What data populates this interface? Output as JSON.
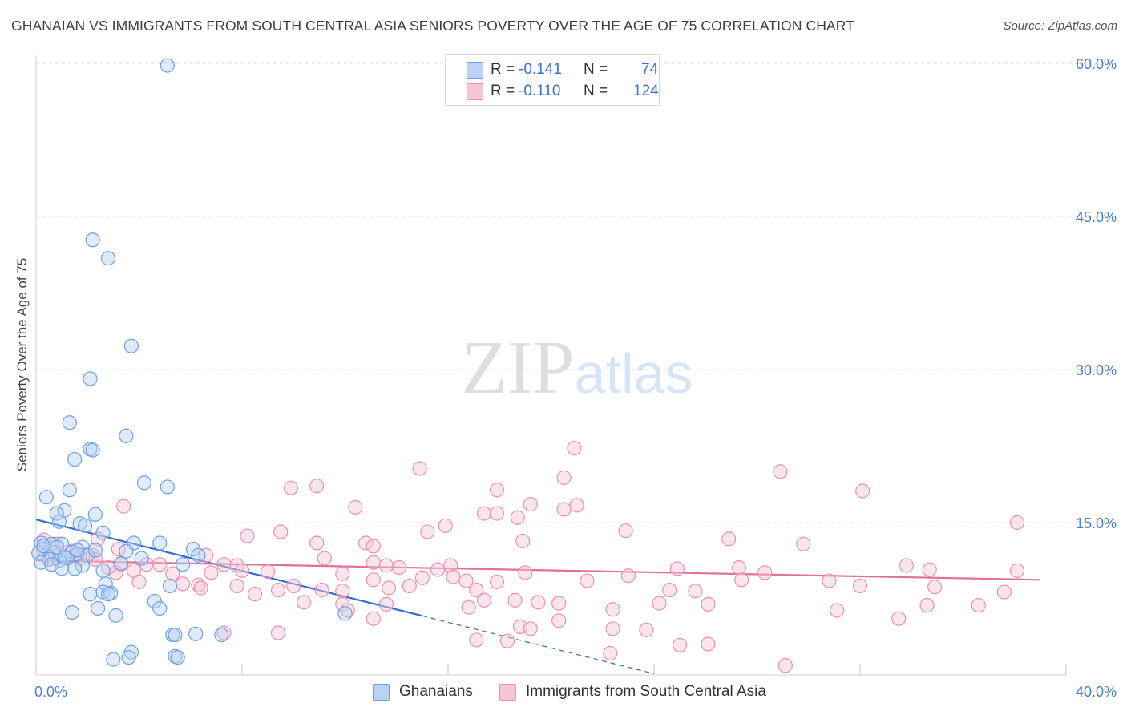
{
  "title": "GHANAIAN VS IMMIGRANTS FROM SOUTH CENTRAL ASIA SENIORS POVERTY OVER THE AGE OF 75 CORRELATION CHART",
  "source": "Source: ZipAtlas.com",
  "watermark": "ZIPatlas",
  "colors": {
    "blue_fill": "#b9d2f5",
    "blue_stroke": "#6d9fe6",
    "blue_line": "#2f6fd0",
    "pink_fill": "#f6c6d6",
    "pink_stroke": "#ec8fb0",
    "pink_line": "#e0709a",
    "axis_text": "#4a7fd6",
    "grid": "#dcdcdc"
  },
  "legend_top": {
    "series1": {
      "r_label": "R =",
      "r_value": "-0.141",
      "n_label": "N =",
      "n_value": "74"
    },
    "series2": {
      "r_label": "R =",
      "r_value": "-0.110",
      "n_label": "N =",
      "n_value": "124"
    }
  },
  "legend_bottom": {
    "series1": "Ghanaians",
    "series2": "Immigrants from South Central Asia"
  },
  "chart_data": {
    "type": "scatter",
    "title": "GHANAIAN VS IMMIGRANTS FROM SOUTH CENTRAL ASIA SENIORS POVERTY OVER THE AGE OF 75 CORRELATION CHART",
    "xlabel": "",
    "ylabel": "Seniors Poverty Over the Age of 75",
    "xlim": [
      0,
      40
    ],
    "ylim": [
      0,
      60
    ],
    "x_tick_labels": [
      "0.0%",
      "40.0%"
    ],
    "y_ticks": [
      15,
      30,
      45,
      60
    ],
    "y_tick_labels": [
      "15.0%",
      "30.0%",
      "45.0%",
      "60.0%"
    ],
    "grid": true,
    "legend_position": "top-center",
    "series": [
      {
        "name": "Ghanaians",
        "r": -0.141,
        "n": 74,
        "trend": {
          "x_start": 0,
          "y_start": 15.3,
          "x_solid_end": 15.0,
          "x_end": 24.0,
          "y_end": 0.2
        },
        "points": [
          [
            5.1,
            59.8
          ],
          [
            2.2,
            42.7
          ],
          [
            2.8,
            40.9
          ],
          [
            3.7,
            32.3
          ],
          [
            2.1,
            29.1
          ],
          [
            1.3,
            24.8
          ],
          [
            3.5,
            23.5
          ],
          [
            2.1,
            22.2
          ],
          [
            2.2,
            22.1
          ],
          [
            1.5,
            21.2
          ],
          [
            4.2,
            18.9
          ],
          [
            5.1,
            18.5
          ],
          [
            1.3,
            18.2
          ],
          [
            0.4,
            17.5
          ],
          [
            1.1,
            16.2
          ],
          [
            0.8,
            15.9
          ],
          [
            2.3,
            15.8
          ],
          [
            1.7,
            14.9
          ],
          [
            0.9,
            15.1
          ],
          [
            1.9,
            14.7
          ],
          [
            2.6,
            14.0
          ],
          [
            3.8,
            13.0
          ],
          [
            4.8,
            13.0
          ],
          [
            0.2,
            13.0
          ],
          [
            0.6,
            12.9
          ],
          [
            1.0,
            12.9
          ],
          [
            1.8,
            12.6
          ],
          [
            0.3,
            12.4
          ],
          [
            1.4,
            12.1
          ],
          [
            6.1,
            12.4
          ],
          [
            3.5,
            12.2
          ],
          [
            0.1,
            12.0
          ],
          [
            0.7,
            12.1
          ],
          [
            1.6,
            11.9
          ],
          [
            2.0,
            11.8
          ],
          [
            6.3,
            11.8
          ],
          [
            0.5,
            11.4
          ],
          [
            1.2,
            11.5
          ],
          [
            4.1,
            11.5
          ],
          [
            0.9,
            11.3
          ],
          [
            0.2,
            11.1
          ],
          [
            3.3,
            11.0
          ],
          [
            1.8,
            10.8
          ],
          [
            0.6,
            10.9
          ],
          [
            5.7,
            10.9
          ],
          [
            1.5,
            10.5
          ],
          [
            1.0,
            10.5
          ],
          [
            2.6,
            10.3
          ],
          [
            2.7,
            9.0
          ],
          [
            5.2,
            8.8
          ],
          [
            2.6,
            8.2
          ],
          [
            2.9,
            8.1
          ],
          [
            2.1,
            8.0
          ],
          [
            2.8,
            8.0
          ],
          [
            4.6,
            7.3
          ],
          [
            4.8,
            6.6
          ],
          [
            2.4,
            6.6
          ],
          [
            1.4,
            6.2
          ],
          [
            3.1,
            5.9
          ],
          [
            12.0,
            6.1
          ],
          [
            5.3,
            4.0
          ],
          [
            5.4,
            4.0
          ],
          [
            6.2,
            4.1
          ],
          [
            7.2,
            4.0
          ],
          [
            3.7,
            2.3
          ],
          [
            3.0,
            1.6
          ],
          [
            3.6,
            1.8
          ],
          [
            5.4,
            1.9
          ],
          [
            5.5,
            1.8
          ],
          [
            0.3,
            12.7
          ],
          [
            0.8,
            12.6
          ],
          [
            2.3,
            12.3
          ],
          [
            1.1,
            11.6
          ],
          [
            1.6,
            12.3
          ]
        ]
      },
      {
        "name": "Immigrants from South Central Asia",
        "r": -0.11,
        "n": 124,
        "trend": {
          "x_start": 0,
          "y_start": 11.3,
          "x_end": 39.0,
          "y_end": 9.4
        },
        "points": [
          [
            20.9,
            22.3
          ],
          [
            14.9,
            20.3
          ],
          [
            28.9,
            20.0
          ],
          [
            20.5,
            19.4
          ],
          [
            10.9,
            18.6
          ],
          [
            9.9,
            18.4
          ],
          [
            17.9,
            18.2
          ],
          [
            32.1,
            18.1
          ],
          [
            3.4,
            16.6
          ],
          [
            12.4,
            16.5
          ],
          [
            19.2,
            16.8
          ],
          [
            21.0,
            16.7
          ],
          [
            17.4,
            15.9
          ],
          [
            17.9,
            15.9
          ],
          [
            20.5,
            16.3
          ],
          [
            18.7,
            15.5
          ],
          [
            15.9,
            14.7
          ],
          [
            15.2,
            14.1
          ],
          [
            9.5,
            14.1
          ],
          [
            22.9,
            14.2
          ],
          [
            38.1,
            15.0
          ],
          [
            8.2,
            13.7
          ],
          [
            26.9,
            13.4
          ],
          [
            18.9,
            13.2
          ],
          [
            10.9,
            13.0
          ],
          [
            12.8,
            13.0
          ],
          [
            13.1,
            12.7
          ],
          [
            3.2,
            12.4
          ],
          [
            2.4,
            13.4
          ],
          [
            0.3,
            13.3
          ],
          [
            29.8,
            12.9
          ],
          [
            0.1,
            12.0
          ],
          [
            1.2,
            12.1
          ],
          [
            1.7,
            11.5
          ],
          [
            2.2,
            11.8
          ],
          [
            6.6,
            11.8
          ],
          [
            11.2,
            11.5
          ],
          [
            13.1,
            11.1
          ],
          [
            7.3,
            10.9
          ],
          [
            7.8,
            10.8
          ],
          [
            3.3,
            10.9
          ],
          [
            4.3,
            10.9
          ],
          [
            14.1,
            10.6
          ],
          [
            13.6,
            10.8
          ],
          [
            16.1,
            10.8
          ],
          [
            24.9,
            10.5
          ],
          [
            27.3,
            10.6
          ],
          [
            33.8,
            10.8
          ],
          [
            38.1,
            10.3
          ],
          [
            34.7,
            10.4
          ],
          [
            8.0,
            10.3
          ],
          [
            6.8,
            10.1
          ],
          [
            9.0,
            10.2
          ],
          [
            3.8,
            10.3
          ],
          [
            5.3,
            10.0
          ],
          [
            11.9,
            10.0
          ],
          [
            15.0,
            9.6
          ],
          [
            16.2,
            9.7
          ],
          [
            21.4,
            9.3
          ],
          [
            23.0,
            9.8
          ],
          [
            16.7,
            9.3
          ],
          [
            13.1,
            9.4
          ],
          [
            17.9,
            9.2
          ],
          [
            4.0,
            9.2
          ],
          [
            5.7,
            9.0
          ],
          [
            6.3,
            8.9
          ],
          [
            7.8,
            8.8
          ],
          [
            10.0,
            8.8
          ],
          [
            13.7,
            8.6
          ],
          [
            14.5,
            8.8
          ],
          [
            27.4,
            9.4
          ],
          [
            30.8,
            9.3
          ],
          [
            32.0,
            8.8
          ],
          [
            34.9,
            8.7
          ],
          [
            37.6,
            8.2
          ],
          [
            9.4,
            8.4
          ],
          [
            11.1,
            8.4
          ],
          [
            11.9,
            8.3
          ],
          [
            17.1,
            8.4
          ],
          [
            24.6,
            8.4
          ],
          [
            25.6,
            8.3
          ],
          [
            6.4,
            8.6
          ],
          [
            8.5,
            8.0
          ],
          [
            10.4,
            7.2
          ],
          [
            17.4,
            7.4
          ],
          [
            18.6,
            7.4
          ],
          [
            19.5,
            7.2
          ],
          [
            20.3,
            7.1
          ],
          [
            24.2,
            7.1
          ],
          [
            26.1,
            7.0
          ],
          [
            31.1,
            6.4
          ],
          [
            34.6,
            6.9
          ],
          [
            36.6,
            6.9
          ],
          [
            11.9,
            7.0
          ],
          [
            13.6,
            7.0
          ],
          [
            16.8,
            6.7
          ],
          [
            22.4,
            6.5
          ],
          [
            12.1,
            6.4
          ],
          [
            13.1,
            5.6
          ],
          [
            20.3,
            5.4
          ],
          [
            18.8,
            4.8
          ],
          [
            19.2,
            4.6
          ],
          [
            22.4,
            4.6
          ],
          [
            23.7,
            4.5
          ],
          [
            33.5,
            5.6
          ],
          [
            17.1,
            3.5
          ],
          [
            18.3,
            3.4
          ],
          [
            26.1,
            3.1
          ],
          [
            25.0,
            3.0
          ],
          [
            22.3,
            2.2
          ],
          [
            29.1,
            1.0
          ],
          [
            7.3,
            4.2
          ],
          [
            9.4,
            4.2
          ],
          [
            2.3,
            11.4
          ],
          [
            0.8,
            12.9
          ],
          [
            1.4,
            12.2
          ],
          [
            0.5,
            11.6
          ],
          [
            1.9,
            11.9
          ],
          [
            4.8,
            10.9
          ],
          [
            15.6,
            10.4
          ],
          [
            28.3,
            10.1
          ],
          [
            3.1,
            10.1
          ],
          [
            2.8,
            10.6
          ],
          [
            19.0,
            10.1
          ]
        ]
      }
    ]
  }
}
